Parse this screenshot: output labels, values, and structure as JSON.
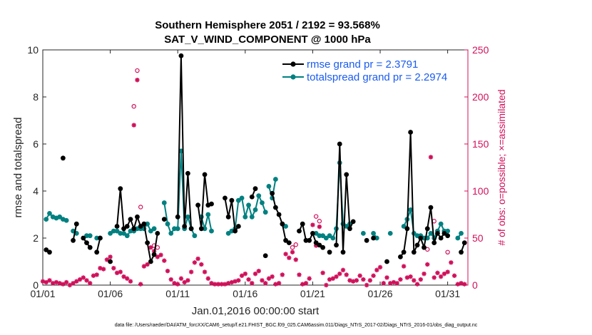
{
  "chart_data": {
    "type": "line",
    "title_line1": "Southern Hemisphere 2051 / 2192 = 93.568%",
    "title_line2": "SAT_V_WIND_COMPONENT @ 1000 hPa",
    "xlabel": "Jan.01,2016 00:00:00 start",
    "ylabel": "rmse and totalspread",
    "ylabel_right": "# of obs: o=possible; ×=assimilated",
    "xlim": [
      1,
      32.5
    ],
    "ylim": [
      0,
      10
    ],
    "ylim_right": [
      0,
      250
    ],
    "x_tick_values": [
      1,
      6,
      11,
      16,
      21,
      26,
      31
    ],
    "x_tick_labels": [
      "01/01",
      "01/06",
      "01/11",
      "01/16",
      "01/21",
      "01/26",
      "01/31"
    ],
    "y_ticks": [
      "0",
      "2",
      "4",
      "6",
      "8",
      "10"
    ],
    "y_tick_values": [
      0,
      2,
      4,
      6,
      8,
      10
    ],
    "y_right_ticks": [
      "0",
      "50",
      "100",
      "150",
      "200",
      "250"
    ],
    "y_right_tick_values": [
      0,
      50,
      100,
      150,
      200,
      250
    ],
    "legend": [
      {
        "label": "rmse grand pr = 2.3791",
        "color": "#000000"
      },
      {
        "label": "totalspread grand pr = 2.2974",
        "color": "#008080"
      }
    ],
    "colors": {
      "rmse": "#000000",
      "spread": "#008080",
      "obs": "#d0105a"
    },
    "rmse_segments": [
      [
        [
          1.25,
          1.5
        ],
        [
          1.5,
          1.4
        ]
      ],
      [
        [
          2.5,
          5.4
        ]
      ],
      [
        [
          3.25,
          1.9
        ],
        [
          3.5,
          2.6
        ]
      ],
      [
        [
          4.0,
          2.0
        ],
        [
          4.25,
          1.8
        ],
        [
          4.5,
          1.6
        ]
      ],
      [
        [
          5.0,
          1.4
        ],
        [
          5.25,
          2.0
        ]
      ],
      [
        [
          6.0,
          1.0
        ]
      ],
      [
        [
          6.5,
          2.5
        ],
        [
          6.75,
          4.1
        ],
        [
          7.0,
          2.4
        ],
        [
          7.25,
          2.5
        ],
        [
          7.5,
          2.8
        ],
        [
          7.75,
          2.4
        ],
        [
          8.0,
          2.9
        ],
        [
          8.25,
          2.5
        ],
        [
          8.5,
          2.6
        ],
        [
          8.75,
          1.8
        ],
        [
          9.0,
          1.0
        ],
        [
          9.25,
          1.3
        ],
        [
          9.5,
          2.2
        ]
      ],
      [
        [
          10.0,
          2.8
        ]
      ],
      [
        [
          11.0,
          2.9
        ],
        [
          11.25,
          9.75
        ],
        [
          11.5,
          2.5
        ],
        [
          11.75,
          4.75
        ],
        [
          12.0,
          2.4
        ]
      ],
      [
        [
          12.5,
          3.4
        ],
        [
          12.75,
          2.4
        ],
        [
          13.0,
          4.7
        ],
        [
          13.25,
          3.4
        ],
        [
          13.5,
          3.45
        ]
      ],
      [
        [
          14.5,
          3.7
        ],
        [
          14.75,
          2.9
        ],
        [
          15.0,
          3.6
        ],
        [
          15.25,
          2.3
        ],
        [
          15.5,
          2.5
        ]
      ],
      [
        [
          16.5,
          3.75
        ],
        [
          16.75,
          4.1
        ]
      ],
      [
        [
          17.5,
          1.25
        ]
      ],
      [
        [
          18.0,
          3.9
        ],
        [
          18.25,
          3.3
        ],
        [
          18.5,
          3.0
        ],
        [
          18.75,
          2.6
        ],
        [
          19.0,
          1.9
        ],
        [
          19.25,
          1.8
        ]
      ],
      [
        [
          20.0,
          2.3
        ],
        [
          20.25,
          2.6
        ],
        [
          20.5,
          1.9
        ],
        [
          20.75,
          1.9
        ],
        [
          21.0,
          2.2
        ],
        [
          21.25,
          1.8
        ]
      ],
      [
        [
          21.5,
          1.7
        ],
        [
          21.75,
          1.6
        ]
      ],
      [
        [
          22.25,
          1.4
        ]
      ],
      [
        [
          22.75,
          1.7
        ],
        [
          23.0,
          6.0
        ],
        [
          23.25,
          1.4
        ],
        [
          23.5,
          4.7
        ],
        [
          23.75,
          2.4
        ],
        [
          24.0,
          2.7
        ]
      ],
      [
        [
          25.0,
          1.9
        ]
      ],
      [
        [
          25.5,
          2.0
        ]
      ],
      [
        [
          26.5,
          1.0
        ]
      ],
      [
        [
          27.5,
          1.2
        ],
        [
          27.75,
          1.4
        ],
        [
          28.0,
          2.4
        ],
        [
          28.25,
          6.5
        ],
        [
          28.5,
          1.4
        ],
        [
          28.75,
          1.7
        ],
        [
          29.0,
          2.0
        ],
        [
          29.25,
          1.6
        ],
        [
          29.5,
          2.4
        ],
        [
          29.75,
          3.3
        ],
        [
          30.0,
          1.8
        ],
        [
          30.25,
          2.2
        ],
        [
          30.5,
          2.0
        ],
        [
          30.75,
          2.2
        ],
        [
          31.0,
          2.1
        ]
      ],
      [
        [
          32.0,
          1.4
        ],
        [
          32.25,
          1.8
        ]
      ]
    ],
    "spread_segments": [
      [
        [
          1.25,
          2.8
        ],
        [
          1.5,
          3.05
        ],
        [
          1.75,
          2.9
        ],
        [
          2.0,
          2.85
        ],
        [
          2.25,
          2.9
        ],
        [
          2.5,
          2.8
        ],
        [
          2.75,
          2.75
        ]
      ],
      [
        [
          3.25,
          2.3
        ],
        [
          3.5,
          2.2
        ]
      ],
      [
        [
          4.25,
          2.1
        ],
        [
          4.5,
          2.1
        ]
      ],
      [
        [
          5.0,
          2.0
        ],
        [
          5.25,
          2.0
        ]
      ],
      [
        [
          6.0,
          2.2
        ],
        [
          6.25,
          2.3
        ],
        [
          6.5,
          2.3
        ],
        [
          6.75,
          2.2
        ],
        [
          7.0,
          2.2
        ],
        [
          7.25,
          2.1
        ],
        [
          7.5,
          2.3
        ],
        [
          7.75,
          2.3
        ],
        [
          8.0,
          2.4
        ],
        [
          8.25,
          2.4
        ],
        [
          8.5,
          2.4
        ],
        [
          8.75,
          2.6
        ],
        [
          9.0,
          2.3
        ],
        [
          9.25,
          2.4
        ]
      ],
      [
        [
          10.0,
          3.5
        ],
        [
          10.25,
          2.6
        ],
        [
          10.5,
          2.2
        ],
        [
          10.75,
          2.4
        ]
      ],
      [
        [
          11.0,
          2.4
        ],
        [
          11.25,
          5.7
        ],
        [
          11.5,
          2.4
        ],
        [
          11.75,
          2.9
        ],
        [
          12.0,
          2.4
        ],
        [
          12.25,
          2.1
        ]
      ],
      [
        [
          12.75,
          2.9
        ],
        [
          13.0,
          2.4
        ],
        [
          13.25,
          3.0
        ],
        [
          13.5,
          2.3
        ]
      ],
      [
        [
          14.75,
          2.2
        ],
        [
          15.0,
          2.3
        ],
        [
          15.25,
          2.4
        ],
        [
          15.5,
          3.6
        ],
        [
          15.75,
          3.7
        ],
        [
          16.0,
          2.9
        ],
        [
          16.25,
          3.4
        ],
        [
          16.5,
          2.9
        ],
        [
          16.75,
          3.2
        ],
        [
          17.0,
          3.8
        ],
        [
          17.25,
          3.5
        ],
        [
          17.5,
          3.1
        ]
      ],
      [
        [
          17.75,
          4.2
        ],
        [
          18.0,
          3.7
        ],
        [
          18.25,
          4.5
        ]
      ],
      [
        [
          19.0,
          2.5
        ]
      ],
      [
        [
          21.25,
          2.2
        ],
        [
          21.5,
          2.1
        ],
        [
          21.75,
          2.1
        ],
        [
          22.0,
          2.0
        ],
        [
          22.25,
          2.1
        ],
        [
          22.5,
          2.0
        ],
        [
          22.75,
          2.4
        ],
        [
          23.0,
          5.2
        ],
        [
          23.25,
          2.6
        ],
        [
          23.5,
          2.5
        ],
        [
          23.75,
          2.6
        ]
      ],
      [
        [
          24.75,
          2.2
        ]
      ],
      [
        [
          25.5,
          2.2
        ],
        [
          25.75,
          2.0
        ]
      ],
      [
        [
          26.75,
          2.2
        ]
      ],
      [
        [
          27.75,
          2.5
        ],
        [
          28.0,
          2.8
        ],
        [
          28.25,
          3.2
        ],
        [
          28.5,
          2.2
        ],
        [
          28.75,
          2.1
        ],
        [
          29.0,
          2.1
        ],
        [
          29.25,
          2.0
        ],
        [
          29.5,
          2.0
        ],
        [
          29.75,
          2.2
        ],
        [
          30.0,
          2.0
        ],
        [
          30.25,
          2.3
        ],
        [
          30.5,
          2.6
        ],
        [
          30.75,
          2.3
        ],
        [
          31.0,
          2.3
        ]
      ],
      [
        [
          31.75,
          2.0
        ],
        [
          32.0,
          2.2
        ]
      ]
    ],
    "obs_possible": [
      [
        7.75,
        190
      ],
      [
        8.0,
        228
      ],
      [
        8.25,
        83
      ],
      [
        9.25,
        42
      ],
      [
        9.5,
        40
      ],
      [
        19.5,
        40
      ],
      [
        19.75,
        43
      ],
      [
        21.25,
        73
      ],
      [
        21.5,
        68
      ],
      [
        27.75,
        35
      ],
      [
        29.5,
        38
      ],
      [
        30.0,
        68
      ],
      [
        31.0,
        35
      ]
    ],
    "obs_assimilated": [
      [
        1.0,
        4
      ],
      [
        1.25,
        3
      ],
      [
        1.5,
        5
      ],
      [
        1.75,
        2
      ],
      [
        2.0,
        3
      ],
      [
        2.25,
        2
      ],
      [
        2.5,
        1
      ],
      [
        2.75,
        3
      ],
      [
        3.0,
        0
      ],
      [
        3.25,
        2
      ],
      [
        3.5,
        4
      ],
      [
        3.75,
        6
      ],
      [
        4.0,
        8
      ],
      [
        4.25,
        5
      ],
      [
        4.5,
        2
      ],
      [
        4.75,
        10
      ],
      [
        5.0,
        11
      ],
      [
        5.25,
        18
      ],
      [
        5.5,
        17
      ],
      [
        5.75,
        27
      ],
      [
        6.0,
        30
      ],
      [
        6.25,
        18
      ],
      [
        6.5,
        13
      ],
      [
        6.75,
        14
      ],
      [
        7.0,
        9
      ],
      [
        7.25,
        7
      ],
      [
        7.5,
        4
      ],
      [
        7.75,
        170
      ],
      [
        8.0,
        218
      ],
      [
        8.25,
        1
      ],
      [
        8.5,
        20
      ],
      [
        8.75,
        22
      ],
      [
        9.0,
        40
      ],
      [
        9.25,
        36
      ],
      [
        9.5,
        30
      ],
      [
        9.75,
        32
      ],
      [
        10.0,
        26
      ],
      [
        10.25,
        15
      ],
      [
        10.5,
        6
      ],
      [
        10.75,
        2
      ],
      [
        11.0,
        1
      ],
      [
        11.25,
        7
      ],
      [
        11.5,
        3
      ],
      [
        11.75,
        5
      ],
      [
        12.0,
        14
      ],
      [
        12.25,
        24
      ],
      [
        12.5,
        28
      ],
      [
        12.75,
        22
      ],
      [
        13.0,
        14
      ],
      [
        13.25,
        7
      ],
      [
        13.5,
        2
      ],
      [
        13.75,
        1
      ],
      [
        14.0,
        1
      ],
      [
        14.25,
        1
      ],
      [
        14.5,
        1
      ],
      [
        14.75,
        2
      ],
      [
        15.0,
        3
      ],
      [
        15.25,
        4
      ],
      [
        15.5,
        5
      ],
      [
        15.75,
        10
      ],
      [
        16.0,
        12
      ],
      [
        16.25,
        6
      ],
      [
        16.5,
        2
      ],
      [
        16.75,
        12
      ],
      [
        17.0,
        15
      ],
      [
        17.25,
        5
      ],
      [
        17.5,
        2
      ],
      [
        17.75,
        7
      ],
      [
        18.0,
        9
      ],
      [
        18.25,
        1
      ],
      [
        18.5,
        2
      ],
      [
        18.75,
        11
      ],
      [
        19.0,
        33
      ],
      [
        19.25,
        29
      ],
      [
        19.5,
        35
      ],
      [
        19.75,
        27
      ],
      [
        20.0,
        11
      ],
      [
        20.25,
        1
      ],
      [
        20.5,
        2
      ],
      [
        20.75,
        7
      ],
      [
        21.0,
        64
      ],
      [
        21.25,
        42
      ],
      [
        21.5,
        62
      ],
      [
        21.75,
        13
      ],
      [
        22.0,
        0
      ],
      [
        22.25,
        6
      ],
      [
        22.5,
        7
      ],
      [
        22.75,
        9
      ],
      [
        23.0,
        12
      ],
      [
        23.25,
        16
      ],
      [
        23.5,
        11
      ],
      [
        23.75,
        5
      ],
      [
        24.0,
        4
      ],
      [
        24.25,
        5
      ],
      [
        24.5,
        10
      ],
      [
        24.75,
        6
      ],
      [
        25.0,
        0
      ],
      [
        25.25,
        5
      ],
      [
        25.5,
        10
      ],
      [
        25.75,
        16
      ],
      [
        26.0,
        19
      ],
      [
        26.25,
        2
      ],
      [
        26.5,
        8
      ],
      [
        26.75,
        2
      ],
      [
        27.0,
        3
      ],
      [
        27.25,
        2
      ],
      [
        27.5,
        6
      ],
      [
        27.75,
        20
      ],
      [
        28.0,
        8
      ],
      [
        28.25,
        9
      ],
      [
        28.5,
        5
      ],
      [
        28.75,
        1
      ],
      [
        29.0,
        6
      ],
      [
        29.25,
        12
      ],
      [
        29.5,
        22
      ],
      [
        29.75,
        136
      ],
      [
        30.0,
        8
      ],
      [
        30.25,
        13
      ],
      [
        30.5,
        9
      ],
      [
        30.75,
        12
      ],
      [
        31.0,
        14
      ],
      [
        31.25,
        24
      ],
      [
        31.5,
        10
      ],
      [
        31.75,
        1
      ],
      [
        32.0,
        2
      ],
      [
        32.25,
        1
      ]
    ]
  },
  "footer": "data file: /Users/raeder/DAI/ATM_forcXX/CAM6_setup/f.e21.FHIST_BGC.f09_025.CAM6assim.011/Diags_NTrS_2017-02/Diags_NTrS_2016-01/obs_diag_output.nc"
}
